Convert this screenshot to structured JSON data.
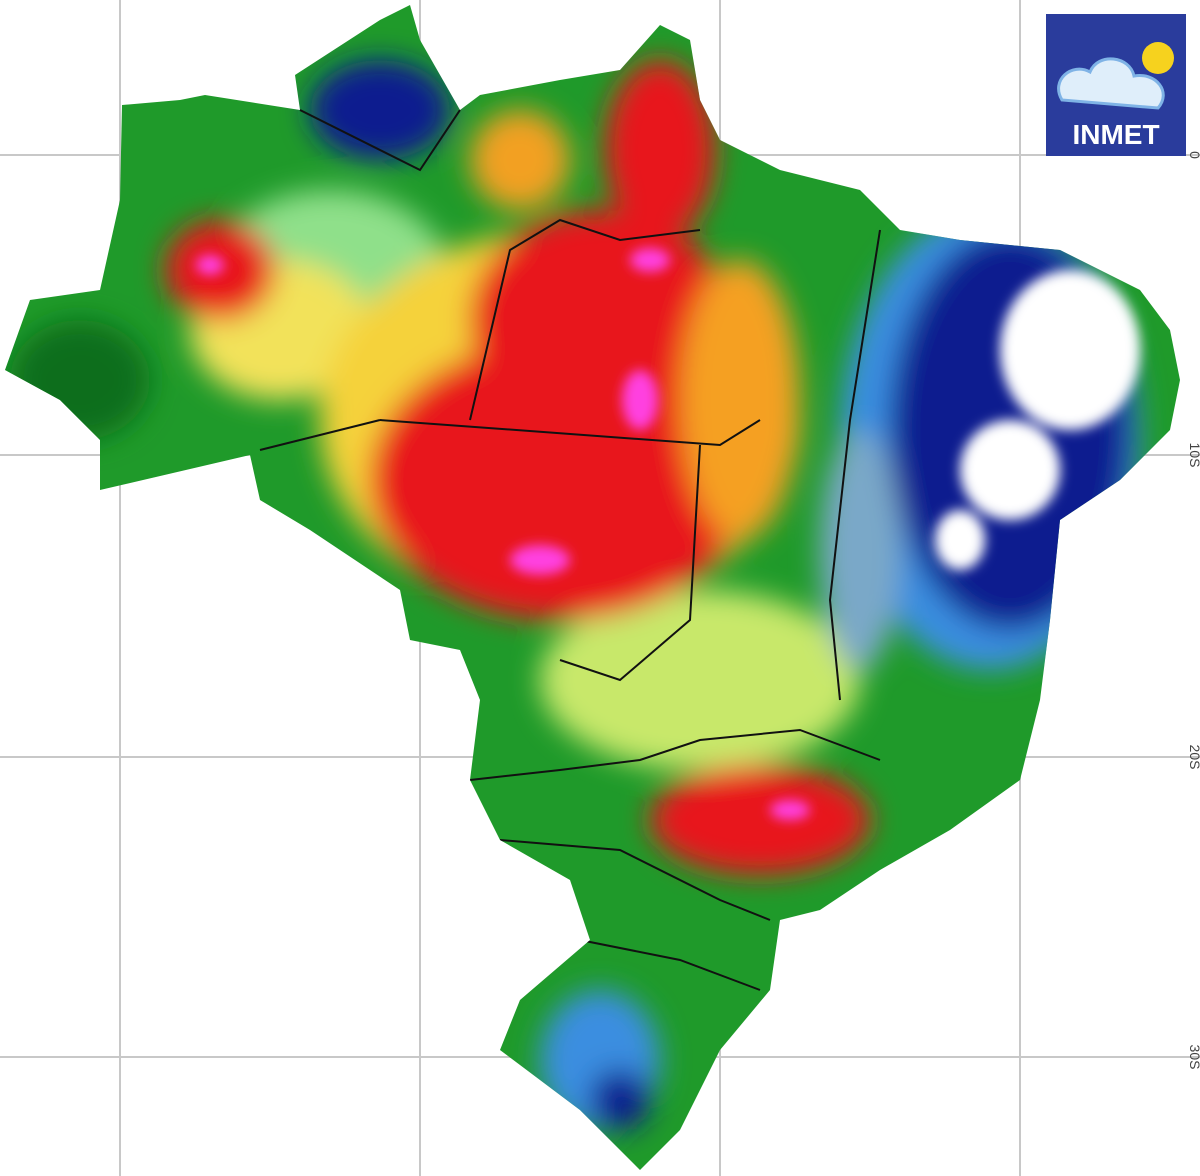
{
  "logo": {
    "text": "INMET"
  },
  "grid": {
    "latitude_labels": [
      "0",
      "10S",
      "20S",
      "30S"
    ]
  }
}
